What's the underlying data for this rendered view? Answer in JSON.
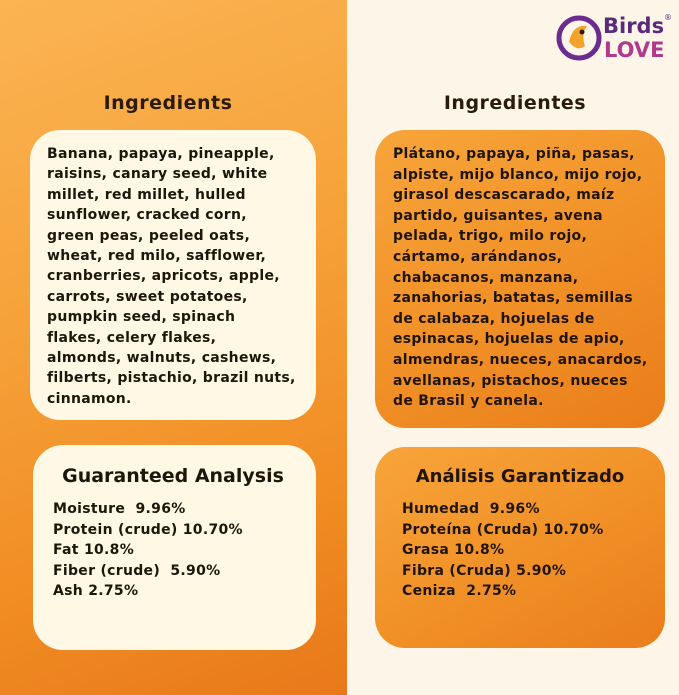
{
  "logo": {
    "top": "Birds",
    "bottom": "LOVE",
    "mark": "®"
  },
  "left": {
    "heading": "Ingredients",
    "ingredients": [
      "Banana, papaya, pineapple,",
      "raisins, canary seed, white",
      "millet, red millet, hulled",
      "sunflower, cracked corn,",
      "green peas, peeled oats,",
      "wheat, red milo, safflower,",
      "cranberries, apricots, apple,",
      "carrots, sweet potatoes,",
      "pumpkin seed, spinach",
      "flakes, celery flakes,",
      "almonds, walnuts, cashews,",
      "filberts, pistachio, brazil nuts,",
      "cinnamon."
    ],
    "analysis_title": "Guaranteed Analysis",
    "analysis": [
      "Moisture  9.96%",
      "Protein (crude) 10.70%",
      "Fat 10.8%",
      "Fiber (crude)  5.90%",
      "Ash 2.75%"
    ]
  },
  "right": {
    "heading": "Ingredientes",
    "ingredients": [
      "Plátano, papaya, piña, pasas,",
      "alpiste, mijo blanco, mijo rojo,",
      "girasol descascarado, maíz",
      "partido, guisantes, avena",
      "pelada, trigo, milo rojo,",
      "cártamo, arándanos,",
      "chabacanos, manzana,",
      "zanahorias, batatas, semillas",
      "de calabaza, hojuelas de",
      "espinacas, hojuelas de apio,",
      "almendras, nueces, anacardos,",
      "avellanas, pistachos, nueces",
      "de Brasil y canela."
    ],
    "analysis_title": "Análisis Garantizado",
    "analysis": [
      "Humedad  9.96%",
      "Proteína (Cruda) 10.70%",
      "Grasa 10.8%",
      "Fibra (Cruda) 5.90%",
      "Ceniza  2.75%"
    ]
  }
}
